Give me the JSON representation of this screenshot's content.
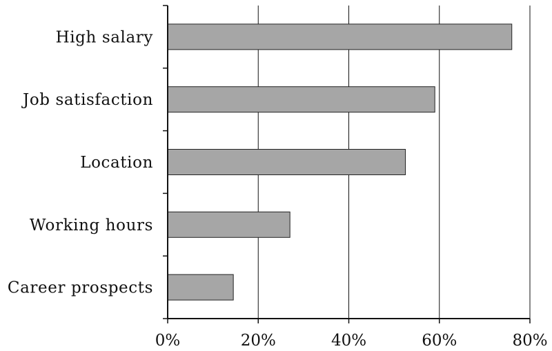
{
  "chart_data": {
    "type": "bar",
    "orientation": "horizontal",
    "categories": [
      "High salary",
      "Job satisfaction",
      "Location",
      "Working hours",
      "Career prospects"
    ],
    "values": [
      76,
      59,
      52.5,
      27,
      14.5
    ],
    "value_unit": "%",
    "xlim": [
      0,
      80
    ],
    "x_ticks": [
      0,
      20,
      40,
      60,
      80
    ],
    "x_tick_labels": [
      "0%",
      "20%",
      "40%",
      "60%",
      "80%"
    ],
    "title": "",
    "xlabel": "",
    "ylabel": "",
    "grid": "vertical",
    "legend": "none",
    "colors": {
      "bar_fill": "#a6a6a6",
      "bar_stroke": "#222222",
      "gridline": "#111111",
      "axis": "#111111"
    }
  }
}
